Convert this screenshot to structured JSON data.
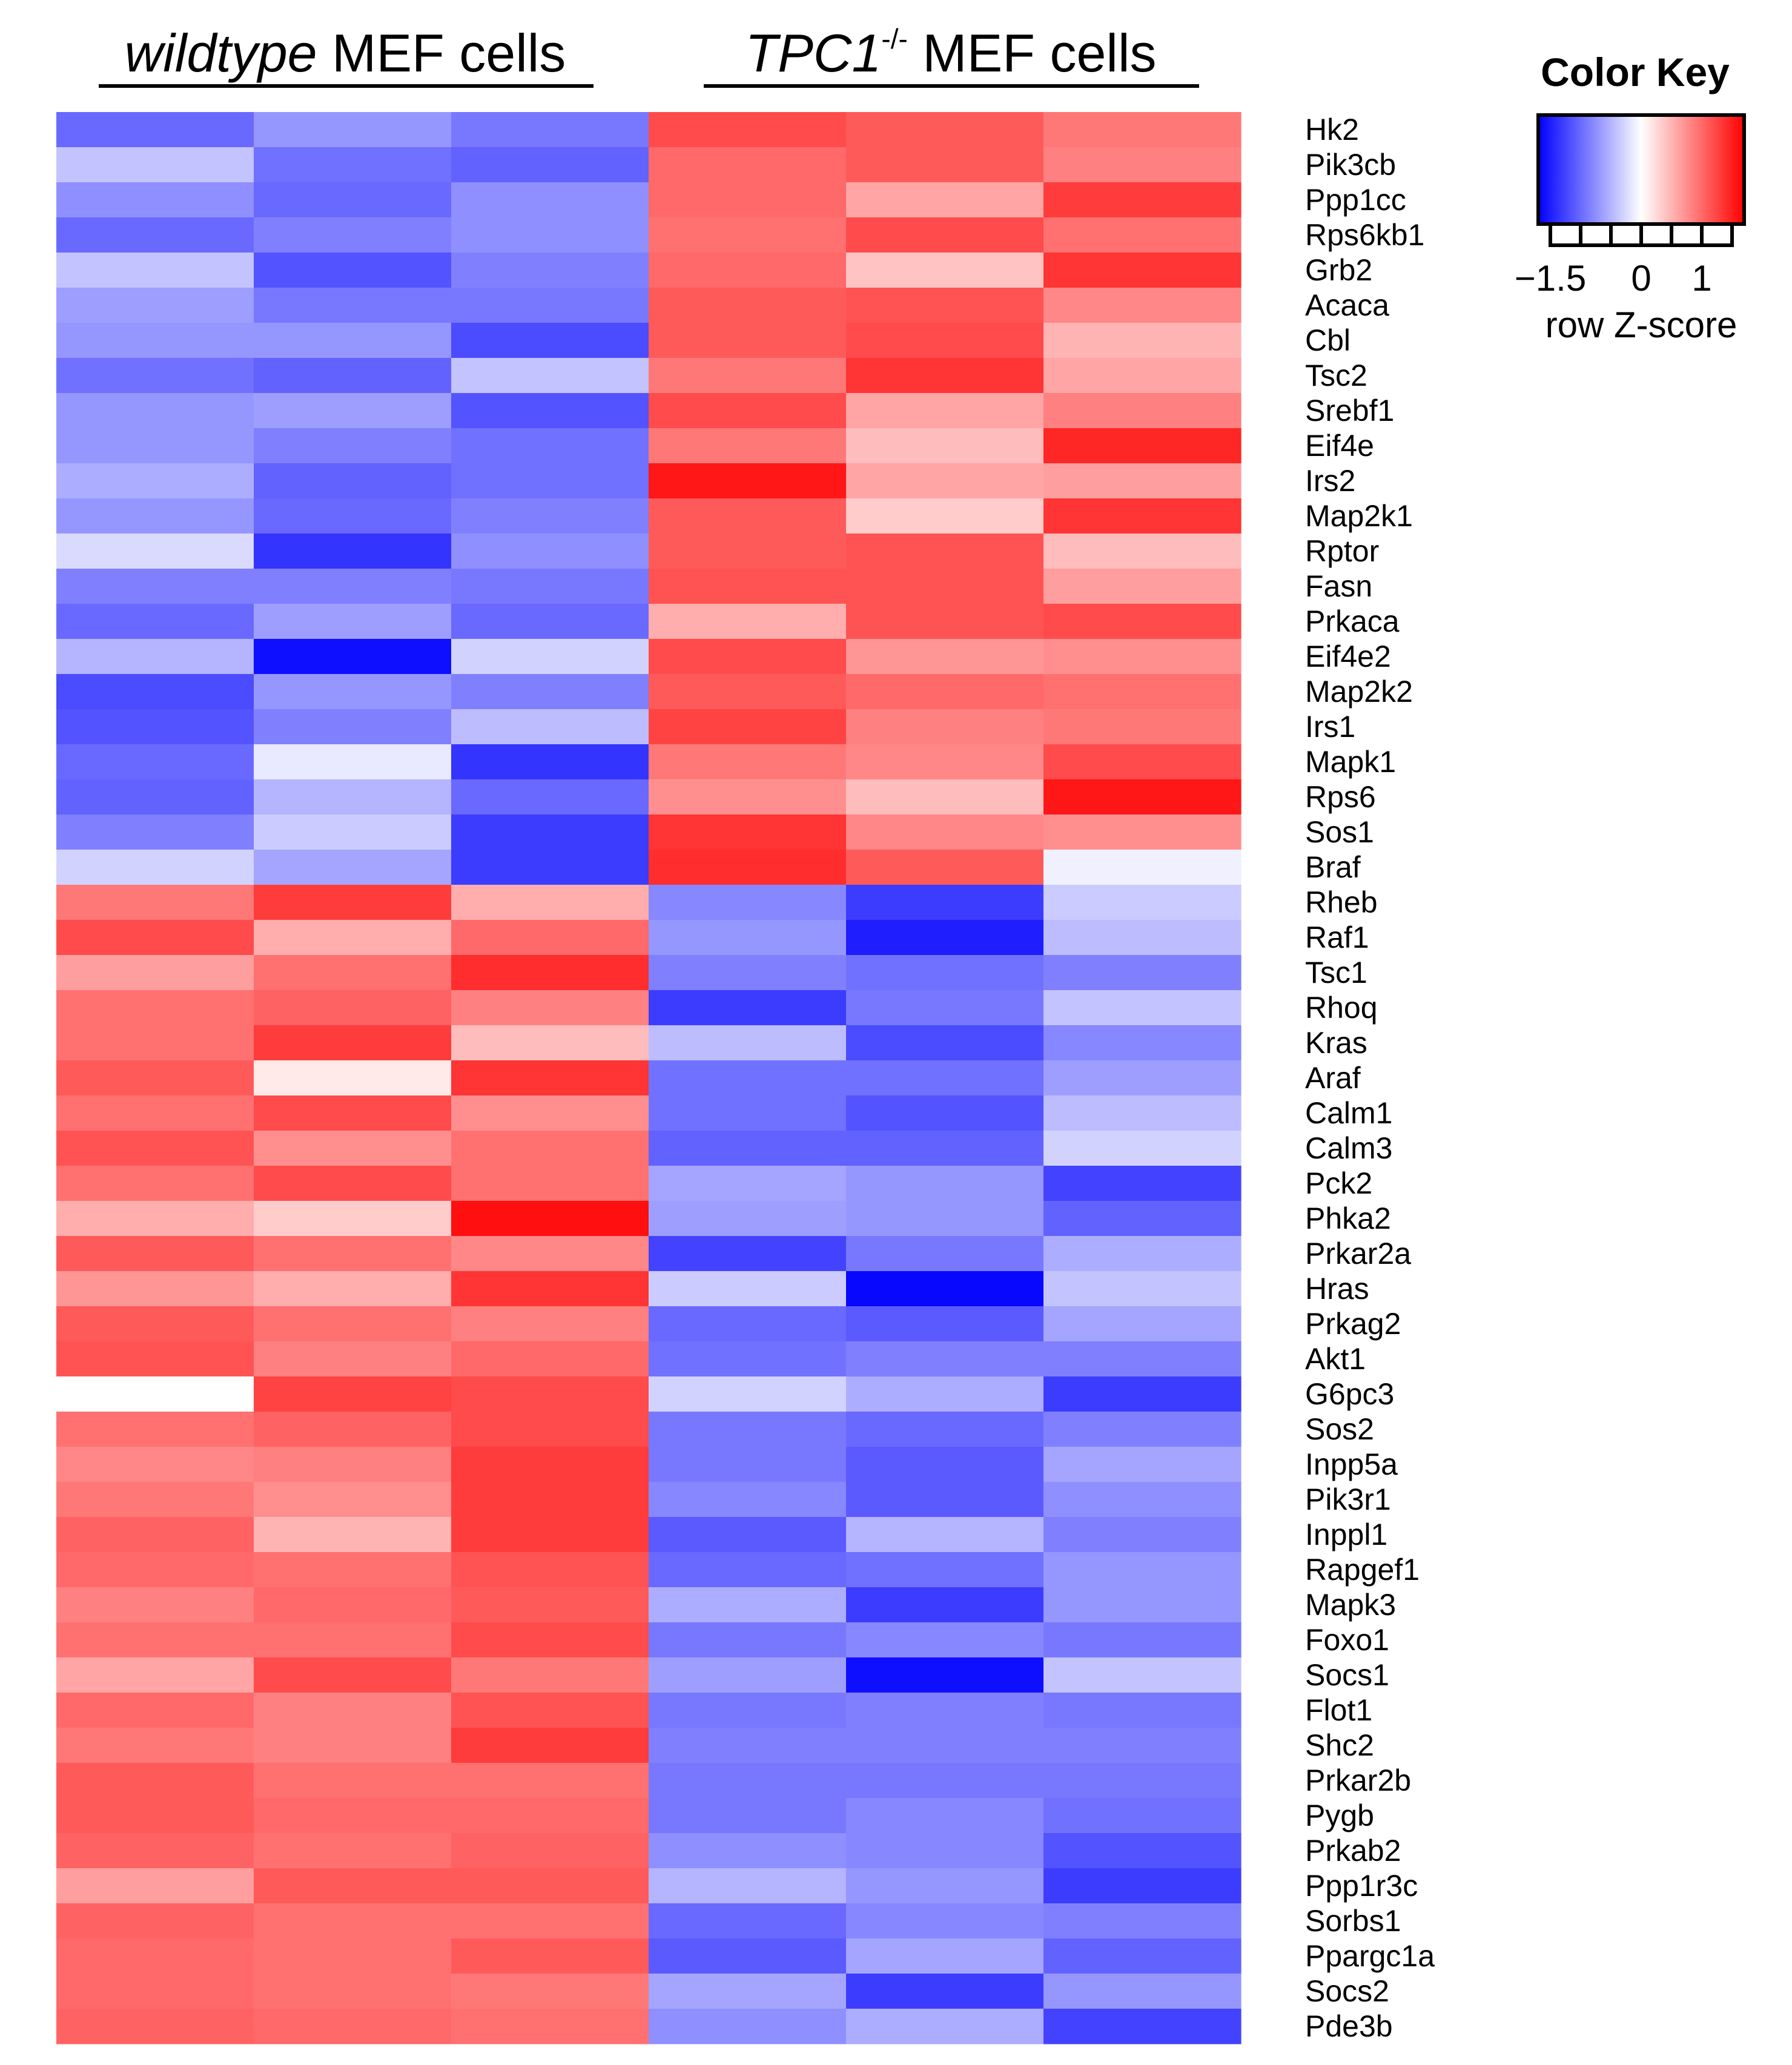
{
  "chart_data": {
    "type": "heatmap",
    "groups": [
      {
        "name_italic": "wildtype",
        "name_rest": " MEF cells",
        "columns": 3
      },
      {
        "name_italic": "TPC1",
        "superscript": "-/-",
        "name_rest": " MEF cells",
        "columns": 3
      }
    ],
    "rows": [
      "Hk2",
      "Pik3cb",
      "Ppp1cc",
      "Rps6kb1",
      "Grb2",
      "Acaca",
      "Cbl",
      "Tsc2",
      "Srebf1",
      "Eif4e",
      "Irs2",
      "Map2k1",
      "Rptor",
      "Fasn",
      "Prkaca",
      "Eif4e2",
      "Map2k2",
      "Irs1",
      "Mapk1",
      "Rps6",
      "Sos1",
      "Braf",
      "Rheb",
      "Raf1",
      "Tsc1",
      "Rhoq",
      "Kras",
      "Araf",
      "Calm1",
      "Calm3",
      "Pck2",
      "Phka2",
      "Prkar2a",
      "Hras",
      "Prkag2",
      "Akt1",
      "G6pc3",
      "Sos2",
      "Inpp5a",
      "Pik3r1",
      "Inppl1",
      "Rapgef1",
      "Mapk3",
      "Foxo1",
      "Socs1",
      "Flot1",
      "Shc2",
      "Prkar2b",
      "Pygb",
      "Prkab2",
      "Ppp1r3c",
      "Sorbs1",
      "Ppargc1a",
      "Socs2",
      "Pde3b"
    ],
    "values": [
      [
        -1.0,
        -0.7,
        -0.9,
        1.2,
        1.1,
        0.9
      ],
      [
        -0.4,
        -0.95,
        -1.05,
        1.0,
        1.1,
        0.85
      ],
      [
        -0.75,
        -1.0,
        -0.75,
        1.0,
        0.6,
        1.3
      ],
      [
        -1.0,
        -0.85,
        -0.75,
        0.95,
        1.2,
        0.95
      ],
      [
        -0.4,
        -1.15,
        -0.85,
        1.0,
        0.4,
        1.35
      ],
      [
        -0.65,
        -0.9,
        -0.9,
        1.1,
        1.15,
        0.8
      ],
      [
        -0.7,
        -0.7,
        -1.2,
        1.1,
        1.2,
        0.5
      ],
      [
        -0.95,
        -1.05,
        -0.4,
        0.9,
        1.35,
        0.6
      ],
      [
        -0.7,
        -0.65,
        -1.15,
        1.2,
        0.6,
        0.85
      ],
      [
        -0.7,
        -0.85,
        -0.95,
        0.9,
        0.45,
        1.45
      ],
      [
        -0.55,
        -1.05,
        -0.95,
        1.55,
        0.6,
        0.65
      ],
      [
        -0.7,
        -1.0,
        -0.85,
        1.1,
        0.35,
        1.35
      ],
      [
        -0.25,
        -1.35,
        -0.75,
        1.1,
        1.15,
        0.45
      ],
      [
        -0.85,
        -0.85,
        -0.9,
        1.15,
        1.15,
        0.65
      ],
      [
        -1.0,
        -0.65,
        -1.0,
        0.55,
        1.15,
        1.2
      ],
      [
        -0.5,
        -1.6,
        -0.3,
        1.2,
        0.7,
        0.75
      ],
      [
        -1.2,
        -0.7,
        -0.85,
        1.1,
        1.0,
        0.95
      ],
      [
        -1.15,
        -0.85,
        -0.45,
        1.25,
        0.85,
        0.9
      ],
      [
        -1.0,
        -0.15,
        -1.35,
        0.9,
        0.8,
        1.2
      ],
      [
        -1.05,
        -0.5,
        -1.0,
        0.75,
        0.45,
        1.55
      ],
      [
        -0.85,
        -0.35,
        -1.3,
        1.35,
        0.8,
        0.75
      ],
      [
        -0.3,
        -0.6,
        -1.3,
        1.4,
        1.1,
        -0.1
      ],
      [
        0.9,
        1.3,
        0.55,
        -0.8,
        -1.3,
        -0.35
      ],
      [
        1.2,
        0.55,
        1.0,
        -0.7,
        -1.5,
        -0.45
      ],
      [
        0.65,
        0.95,
        1.4,
        -0.85,
        -0.95,
        -0.85
      ],
      [
        0.95,
        1.05,
        0.85,
        -1.3,
        -0.9,
        -0.4
      ],
      [
        0.95,
        1.3,
        0.45,
        -0.45,
        -1.2,
        -0.8
      ],
      [
        1.1,
        0.15,
        1.35,
        -0.95,
        -0.95,
        -0.65
      ],
      [
        0.95,
        1.2,
        0.75,
        -0.95,
        -1.15,
        -0.45
      ],
      [
        1.15,
        0.75,
        0.95,
        -1.05,
        -1.05,
        -0.3
      ],
      [
        0.95,
        1.2,
        0.95,
        -0.6,
        -0.7,
        -1.25
      ],
      [
        0.55,
        0.35,
        1.6,
        -0.65,
        -0.7,
        -1.05
      ],
      [
        1.1,
        0.95,
        0.8,
        -1.25,
        -0.9,
        -0.55
      ],
      [
        0.7,
        0.55,
        1.35,
        -0.35,
        -1.65,
        -0.4
      ],
      [
        1.1,
        0.95,
        0.85,
        -1.0,
        -1.1,
        -0.6
      ],
      [
        1.15,
        0.85,
        1.0,
        -0.95,
        -0.85,
        -0.85
      ],
      [
        0.0,
        1.25,
        1.2,
        -0.3,
        -0.55,
        -1.3
      ],
      [
        0.95,
        1.05,
        1.2,
        -0.9,
        -1.0,
        -0.85
      ],
      [
        0.8,
        0.85,
        1.3,
        -0.9,
        -1.1,
        -0.6
      ],
      [
        0.9,
        0.75,
        1.3,
        -0.8,
        -1.1,
        -0.75
      ],
      [
        1.05,
        0.5,
        1.3,
        -1.1,
        -0.5,
        -0.85
      ],
      [
        1.0,
        0.95,
        1.15,
        -1.0,
        -0.95,
        -0.7
      ],
      [
        0.85,
        1.0,
        1.1,
        -0.55,
        -1.3,
        -0.7
      ],
      [
        0.95,
        0.95,
        1.2,
        -0.9,
        -0.8,
        -0.9
      ],
      [
        0.6,
        1.2,
        0.9,
        -0.65,
        -1.6,
        -0.4
      ],
      [
        1.0,
        0.85,
        1.15,
        -0.9,
        -0.85,
        -0.9
      ],
      [
        0.9,
        0.85,
        1.3,
        -0.85,
        -0.85,
        -0.85
      ],
      [
        1.1,
        0.95,
        0.95,
        -0.9,
        -0.9,
        -0.9
      ],
      [
        1.1,
        1.0,
        1.0,
        -0.9,
        -0.8,
        -0.95
      ],
      [
        1.05,
        0.95,
        1.05,
        -0.75,
        -0.8,
        -1.15
      ],
      [
        0.65,
        1.1,
        1.1,
        -0.5,
        -0.7,
        -1.3
      ],
      [
        1.05,
        0.95,
        0.95,
        -1.0,
        -0.8,
        -0.85
      ],
      [
        1.0,
        0.95,
        1.1,
        -1.1,
        -0.6,
        -1.05
      ],
      [
        1.0,
        0.95,
        0.9,
        -0.6,
        -1.3,
        -0.7
      ],
      [
        1.05,
        1.0,
        0.95,
        -0.75,
        -0.55,
        -1.25
      ]
    ],
    "color_key": {
      "title": "Color Key",
      "xlabel": "row Z-score",
      "range": [
        -1.7,
        1.7
      ],
      "tick_labels": [
        {
          "value": -1.5,
          "label": "−1.5"
        },
        {
          "value": 0,
          "label": "0"
        },
        {
          "value": 1,
          "label": "1"
        }
      ],
      "tick_values": [
        -1.5,
        -1.0,
        -0.5,
        0,
        0.5,
        1.0,
        1.5
      ],
      "low_color": "#0000ff",
      "mid_color": "#ffffff",
      "high_color": "#ff0000"
    }
  }
}
